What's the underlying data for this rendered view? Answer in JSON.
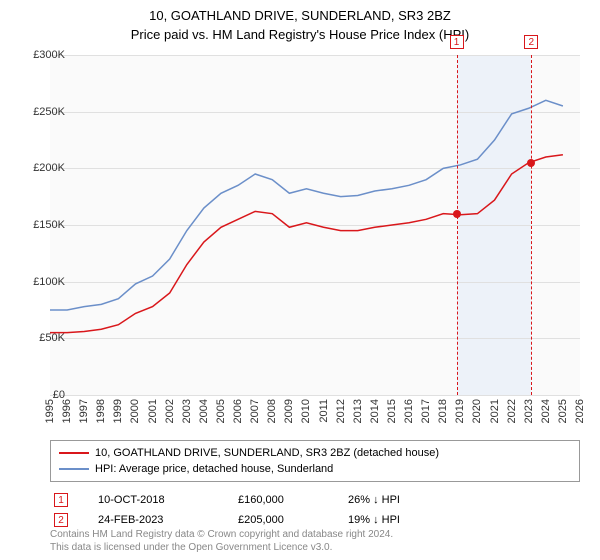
{
  "title": "10, GOATHLAND DRIVE, SUNDERLAND, SR3 2BZ",
  "subtitle": "Price paid vs. HM Land Registry's House Price Index (HPI)",
  "chart": {
    "type": "line",
    "background_color": "#fafafa",
    "plot_band_color": "#edf2f9",
    "grid_color": "#e0e0e0",
    "xlim": [
      1995,
      2026
    ],
    "ylim": [
      0,
      300000
    ],
    "ytick_step": 50000,
    "yticks": [
      "£0",
      "£50K",
      "£100K",
      "£150K",
      "£200K",
      "£250K",
      "£300K"
    ],
    "xticks": [
      1995,
      1996,
      1997,
      1998,
      1999,
      2000,
      2001,
      2002,
      2003,
      2004,
      2005,
      2006,
      2007,
      2008,
      2009,
      2010,
      2011,
      2012,
      2013,
      2014,
      2015,
      2016,
      2017,
      2018,
      2019,
      2020,
      2021,
      2022,
      2023,
      2024,
      2025,
      2026
    ],
    "series": [
      {
        "name": "property",
        "label": "10, GOATHLAND DRIVE, SUNDERLAND, SR3 2BZ (detached house)",
        "color": "#d9171b",
        "line_width": 1.5,
        "data": [
          [
            1995,
            55000
          ],
          [
            1996,
            55000
          ],
          [
            1997,
            56000
          ],
          [
            1998,
            58000
          ],
          [
            1999,
            62000
          ],
          [
            2000,
            72000
          ],
          [
            2001,
            78000
          ],
          [
            2002,
            90000
          ],
          [
            2003,
            115000
          ],
          [
            2004,
            135000
          ],
          [
            2005,
            148000
          ],
          [
            2006,
            155000
          ],
          [
            2007,
            162000
          ],
          [
            2008,
            160000
          ],
          [
            2009,
            148000
          ],
          [
            2010,
            152000
          ],
          [
            2011,
            148000
          ],
          [
            2012,
            145000
          ],
          [
            2013,
            145000
          ],
          [
            2014,
            148000
          ],
          [
            2015,
            150000
          ],
          [
            2016,
            152000
          ],
          [
            2017,
            155000
          ],
          [
            2018,
            160000
          ],
          [
            2019,
            159000
          ],
          [
            2020,
            160000
          ],
          [
            2021,
            172000
          ],
          [
            2022,
            195000
          ],
          [
            2023,
            205000
          ],
          [
            2024,
            210000
          ],
          [
            2025,
            212000
          ]
        ]
      },
      {
        "name": "hpi",
        "label": "HPI: Average price, detached house, Sunderland",
        "color": "#6b8fc9",
        "line_width": 1.5,
        "data": [
          [
            1995,
            75000
          ],
          [
            1996,
            75000
          ],
          [
            1997,
            78000
          ],
          [
            1998,
            80000
          ],
          [
            1999,
            85000
          ],
          [
            2000,
            98000
          ],
          [
            2001,
            105000
          ],
          [
            2002,
            120000
          ],
          [
            2003,
            145000
          ],
          [
            2004,
            165000
          ],
          [
            2005,
            178000
          ],
          [
            2006,
            185000
          ],
          [
            2007,
            195000
          ],
          [
            2008,
            190000
          ],
          [
            2009,
            178000
          ],
          [
            2010,
            182000
          ],
          [
            2011,
            178000
          ],
          [
            2012,
            175000
          ],
          [
            2013,
            176000
          ],
          [
            2014,
            180000
          ],
          [
            2015,
            182000
          ],
          [
            2016,
            185000
          ],
          [
            2017,
            190000
          ],
          [
            2018,
            200000
          ],
          [
            2019,
            203000
          ],
          [
            2020,
            208000
          ],
          [
            2021,
            225000
          ],
          [
            2022,
            248000
          ],
          [
            2023,
            253000
          ],
          [
            2024,
            260000
          ],
          [
            2025,
            255000
          ]
        ]
      }
    ],
    "markers": [
      {
        "n": "1",
        "x": 2018.78,
        "y": 160000,
        "color": "#d9171b"
      },
      {
        "n": "2",
        "x": 2023.15,
        "y": 205000,
        "color": "#d9171b"
      }
    ],
    "plot_band": {
      "from": 2018.78,
      "to": 2023.15
    }
  },
  "sales": [
    {
      "n": "1",
      "date": "10-OCT-2018",
      "price": "£160,000",
      "delta": "26% ↓ HPI",
      "color": "#d9171b"
    },
    {
      "n": "2",
      "date": "24-FEB-2023",
      "price": "£205,000",
      "delta": "19% ↓ HPI",
      "color": "#d9171b"
    }
  ],
  "footer_line1": "Contains HM Land Registry data © Crown copyright and database right 2024.",
  "footer_line2": "This data is licensed under the Open Government Licence v3.0."
}
